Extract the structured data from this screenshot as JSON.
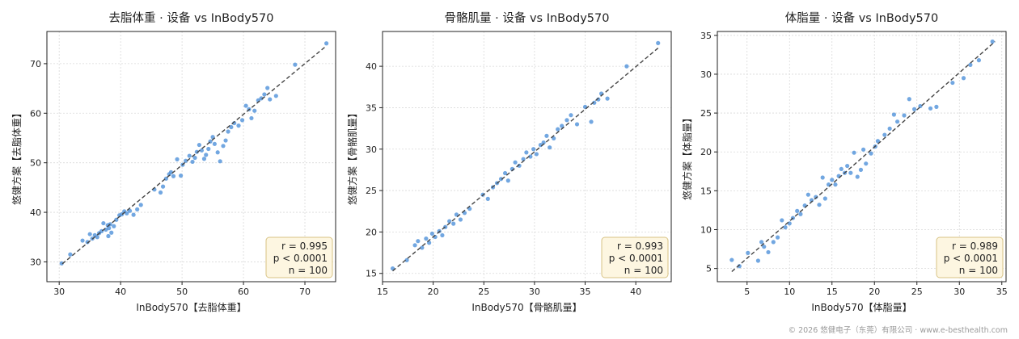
{
  "footer": "© 2026 悠健电子（东莞）有限公司 · www.e-besthealth.com",
  "style": {
    "point_color": "#4a8ed8",
    "line_color": "#444444",
    "grid_color": "#d9d9d9",
    "stats_box_fill": "#fdf6e1",
    "stats_box_border": "#d8c384"
  },
  "chart_data": [
    {
      "type": "scatter",
      "title": "去脂体重 · 设备 vs InBody570",
      "xlabel": "InBody570【去脂体重】",
      "ylabel": "悠健方案【去脂体重】",
      "xlim": [
        28,
        75
      ],
      "ylim": [
        26,
        76.5
      ],
      "xticks": [
        30,
        40,
        50,
        60,
        70
      ],
      "yticks": [
        30,
        40,
        50,
        60,
        70
      ],
      "grid": true,
      "identity_line": [
        [
          30.5,
          29.6
        ],
        [
          73.5,
          73.6
        ]
      ],
      "stats": {
        "r": "r = 0.995",
        "p": "p < 0.0001",
        "n": "n = 100"
      },
      "stats_placement": "bottom-right",
      "points": [
        [
          30.4,
          29.7
        ],
        [
          31.8,
          31.5
        ],
        [
          33.8,
          34.3
        ],
        [
          34.6,
          34.0
        ],
        [
          35.0,
          35.6
        ],
        [
          35.4,
          34.7
        ],
        [
          35.8,
          35.4
        ],
        [
          36.2,
          35.0
        ],
        [
          36.5,
          35.8
        ],
        [
          36.9,
          36.2
        ],
        [
          37.2,
          37.8
        ],
        [
          37.6,
          36.5
        ],
        [
          37.9,
          37.4
        ],
        [
          38.1,
          36.8
        ],
        [
          38.3,
          37.6
        ],
        [
          38.0,
          35.2
        ],
        [
          38.5,
          35.9
        ],
        [
          38.9,
          37.2
        ],
        [
          39.3,
          38.5
        ],
        [
          39.8,
          39.4
        ],
        [
          40.2,
          39.6
        ],
        [
          40.6,
          40.2
        ],
        [
          41.0,
          39.8
        ],
        [
          41.5,
          40.3
        ],
        [
          42.1,
          39.5
        ],
        [
          42.7,
          40.6
        ],
        [
          43.3,
          41.5
        ],
        [
          45.5,
          44.6
        ],
        [
          46.5,
          44.0
        ],
        [
          46.9,
          45.2
        ],
        [
          47.4,
          46.8
        ],
        [
          47.9,
          47.7
        ],
        [
          48.2,
          48.1
        ],
        [
          48.6,
          47.3
        ],
        [
          49.2,
          50.7
        ],
        [
          49.8,
          47.4
        ],
        [
          50.1,
          49.6
        ],
        [
          50.6,
          50.4
        ],
        [
          51.2,
          51.4
        ],
        [
          51.7,
          50.2
        ],
        [
          52.1,
          51.0
        ],
        [
          52.4,
          52.2
        ],
        [
          52.8,
          53.6
        ],
        [
          53.2,
          52.5
        ],
        [
          53.6,
          50.8
        ],
        [
          53.9,
          51.6
        ],
        [
          54.3,
          52.8
        ],
        [
          54.6,
          54.3
        ],
        [
          55.0,
          55.2
        ],
        [
          55.3,
          53.8
        ],
        [
          55.8,
          52.1
        ],
        [
          56.2,
          50.3
        ],
        [
          56.7,
          53.4
        ],
        [
          57.1,
          54.5
        ],
        [
          57.5,
          56.3
        ],
        [
          58.0,
          57.2
        ],
        [
          58.5,
          58.0
        ],
        [
          59.2,
          57.5
        ],
        [
          59.8,
          58.6
        ],
        [
          60.4,
          61.5
        ],
        [
          60.9,
          60.8
        ],
        [
          61.3,
          59.0
        ],
        [
          61.8,
          60.5
        ],
        [
          62.4,
          62.6
        ],
        [
          62.9,
          63.0
        ],
        [
          63.4,
          63.8
        ],
        [
          63.9,
          65.1
        ],
        [
          64.3,
          62.8
        ],
        [
          65.3,
          63.5
        ],
        [
          68.4,
          69.8
        ],
        [
          73.5,
          74.1
        ]
      ]
    },
    {
      "type": "scatter",
      "title": "骨骼肌量 · 设备 vs InBody570",
      "xlabel": "InBody570【骨骼肌量】",
      "ylabel": "悠健方案【骨骼肌量】",
      "xlim": [
        15,
        43.5
      ],
      "ylim": [
        14,
        44.2
      ],
      "xticks": [
        15,
        20,
        25,
        30,
        35,
        40
      ],
      "yticks": [
        15,
        20,
        25,
        30,
        35,
        40
      ],
      "grid": true,
      "identity_line": [
        [
          16.0,
          15.3
        ],
        [
          42.2,
          42.2
        ]
      ],
      "stats": {
        "r": "r = 0.993",
        "p": "p < 0.0001",
        "n": "n = 100"
      },
      "stats_placement": "bottom-right",
      "points": [
        [
          16.0,
          15.6
        ],
        [
          17.4,
          16.6
        ],
        [
          18.2,
          18.4
        ],
        [
          18.5,
          18.9
        ],
        [
          18.9,
          18.1
        ],
        [
          19.3,
          19.2
        ],
        [
          19.6,
          18.7
        ],
        [
          19.9,
          19.8
        ],
        [
          20.2,
          19.4
        ],
        [
          20.6,
          20.1
        ],
        [
          20.9,
          19.6
        ],
        [
          21.2,
          20.6
        ],
        [
          21.6,
          21.3
        ],
        [
          22.0,
          21.0
        ],
        [
          22.3,
          22.1
        ],
        [
          22.7,
          21.5
        ],
        [
          23.1,
          22.3
        ],
        [
          23.6,
          22.8
        ],
        [
          24.9,
          24.5
        ],
        [
          25.4,
          24.0
        ],
        [
          25.9,
          25.4
        ],
        [
          26.3,
          25.9
        ],
        [
          26.7,
          26.4
        ],
        [
          27.1,
          27.1
        ],
        [
          27.4,
          26.2
        ],
        [
          27.8,
          27.6
        ],
        [
          28.1,
          28.4
        ],
        [
          28.5,
          28.0
        ],
        [
          28.9,
          28.8
        ],
        [
          29.2,
          29.6
        ],
        [
          29.6,
          29.1
        ],
        [
          29.9,
          30.0
        ],
        [
          30.2,
          29.4
        ],
        [
          30.6,
          30.5
        ],
        [
          30.9,
          30.8
        ],
        [
          31.2,
          31.6
        ],
        [
          31.5,
          30.2
        ],
        [
          31.9,
          31.3
        ],
        [
          32.3,
          32.4
        ],
        [
          32.7,
          32.8
        ],
        [
          33.2,
          33.5
        ],
        [
          33.6,
          34.1
        ],
        [
          34.2,
          33.0
        ],
        [
          35.0,
          35.1
        ],
        [
          35.6,
          33.3
        ],
        [
          35.9,
          35.6
        ],
        [
          36.3,
          36.0
        ],
        [
          36.6,
          36.7
        ],
        [
          37.2,
          36.1
        ],
        [
          39.1,
          40.0
        ],
        [
          42.2,
          42.8
        ]
      ]
    },
    {
      "type": "scatter",
      "title": "体脂量 · 设备 vs InBody570",
      "xlabel": "InBody570【体脂量】",
      "ylabel": "悠健方案【体脂量】",
      "xlim": [
        1.5,
        35.5
      ],
      "ylim": [
        3.3,
        35.5
      ],
      "xticks": [
        5,
        10,
        15,
        20,
        25,
        30,
        35
      ],
      "yticks": [
        5,
        10,
        15,
        20,
        25,
        30,
        35
      ],
      "grid": true,
      "identity_line": [
        [
          3.2,
          4.6
        ],
        [
          34.2,
          34.2
        ]
      ],
      "stats": {
        "r": "r = 0.989",
        "p": "p < 0.0001",
        "n": "n = 100"
      },
      "stats_placement": "bottom-right",
      "points": [
        [
          3.2,
          6.1
        ],
        [
          4.1,
          5.3
        ],
        [
          5.1,
          7.0
        ],
        [
          6.3,
          6.0
        ],
        [
          6.7,
          8.4
        ],
        [
          7.0,
          7.8
        ],
        [
          7.5,
          7.1
        ],
        [
          8.1,
          8.4
        ],
        [
          8.6,
          9.0
        ],
        [
          9.1,
          11.2
        ],
        [
          9.5,
          10.3
        ],
        [
          10.0,
          10.8
        ],
        [
          10.4,
          11.5
        ],
        [
          10.9,
          12.4
        ],
        [
          11.3,
          12.0
        ],
        [
          11.8,
          13.1
        ],
        [
          12.2,
          14.5
        ],
        [
          12.6,
          13.8
        ],
        [
          13.1,
          14.2
        ],
        [
          13.5,
          13.2
        ],
        [
          13.9,
          16.7
        ],
        [
          14.2,
          14.0
        ],
        [
          14.6,
          15.8
        ],
        [
          15.0,
          16.4
        ],
        [
          15.4,
          15.8
        ],
        [
          15.8,
          16.9
        ],
        [
          16.1,
          17.8
        ],
        [
          16.5,
          17.3
        ],
        [
          16.8,
          18.2
        ],
        [
          17.2,
          17.3
        ],
        [
          17.6,
          19.9
        ],
        [
          18.0,
          16.8
        ],
        [
          18.4,
          17.7
        ],
        [
          18.7,
          20.3
        ],
        [
          19.0,
          18.5
        ],
        [
          19.6,
          19.8
        ],
        [
          20.1,
          20.7
        ],
        [
          20.4,
          21.4
        ],
        [
          21.2,
          22.2
        ],
        [
          21.8,
          23.0
        ],
        [
          22.3,
          24.8
        ],
        [
          22.7,
          23.9
        ],
        [
          23.5,
          24.7
        ],
        [
          24.1,
          26.8
        ],
        [
          24.7,
          25.5
        ],
        [
          25.4,
          25.9
        ],
        [
          26.6,
          25.6
        ],
        [
          27.3,
          25.8
        ],
        [
          29.2,
          28.9
        ],
        [
          30.5,
          29.5
        ],
        [
          31.3,
          31.2
        ],
        [
          32.3,
          31.8
        ],
        [
          33.9,
          34.2
        ]
      ]
    }
  ]
}
